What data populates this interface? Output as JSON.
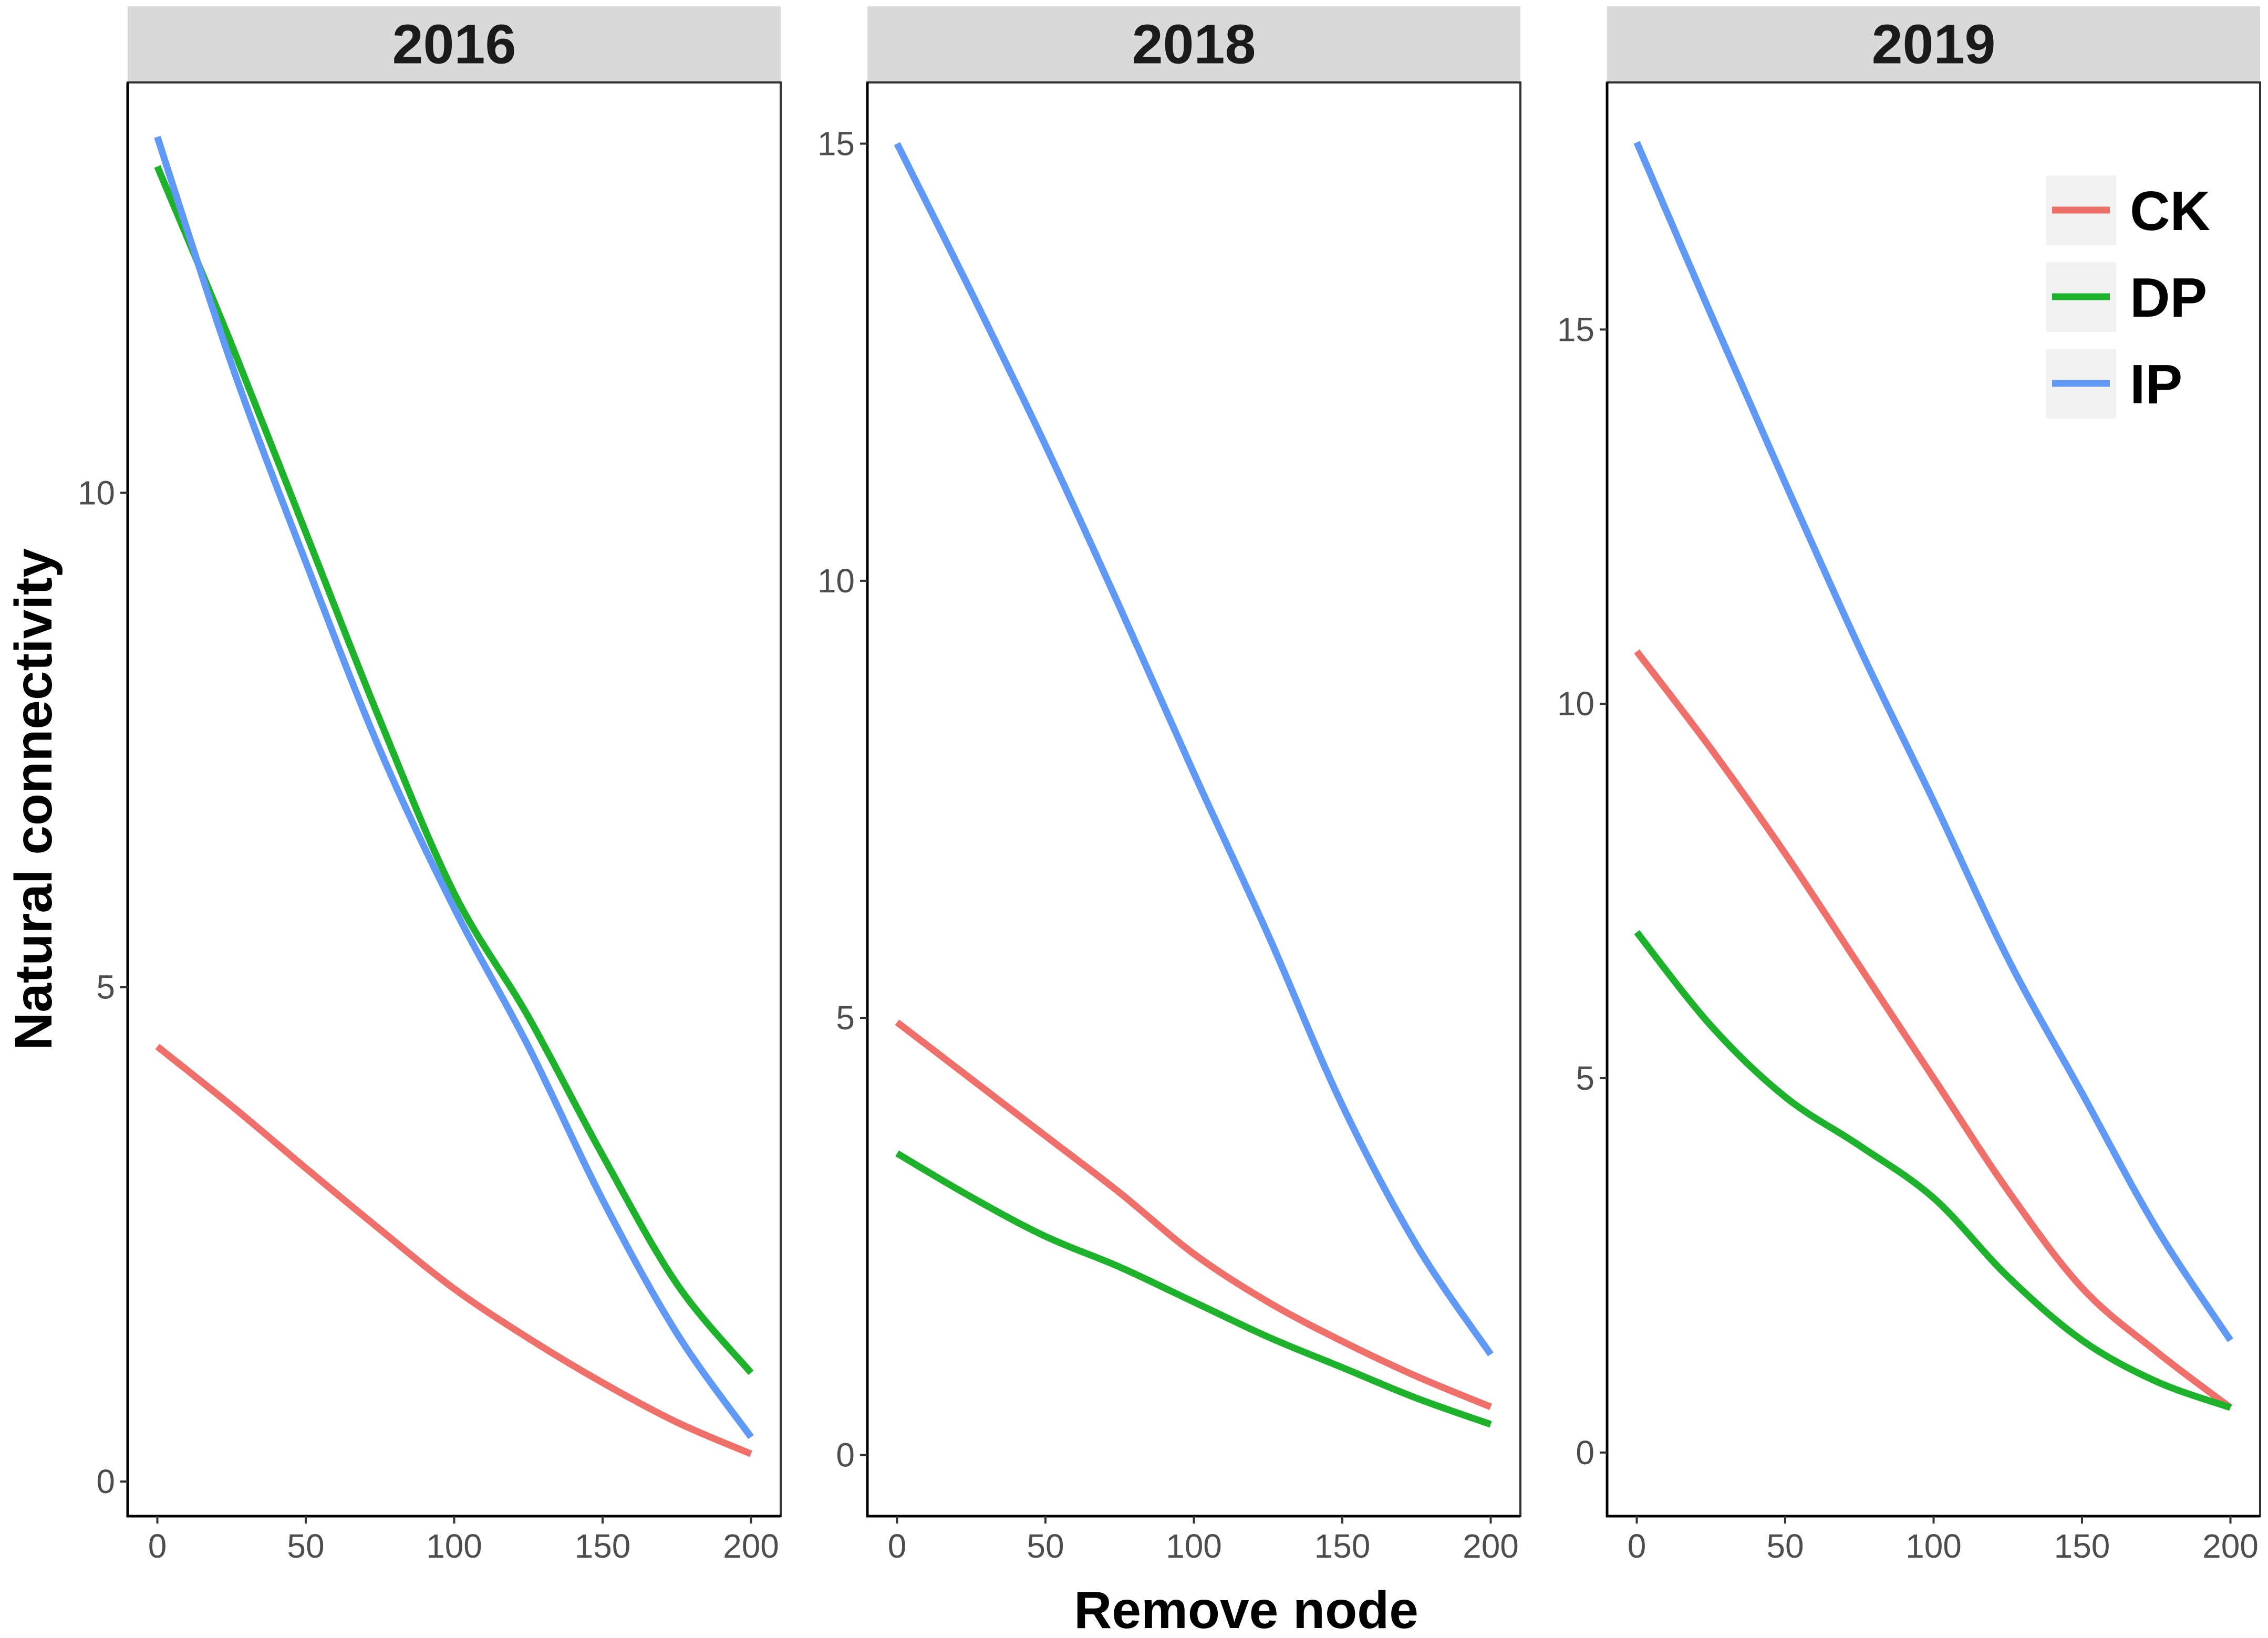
{
  "chart_data": {
    "type": "line",
    "xlabel": "Remove node",
    "ylabel": "Natural connectivity",
    "x_ticks": [
      0,
      50,
      100,
      150,
      200
    ],
    "legend": {
      "placement": "top-right",
      "items": [
        "CK",
        "DP",
        "IP"
      ]
    },
    "colors": {
      "CK": "#ef6f6a",
      "DP": "#1db12c",
      "IP": "#5f98f5"
    },
    "grid": false,
    "panels": [
      {
        "title": "2016",
        "xlim": [
          -10,
          210
        ],
        "ylim": [
          -0.35,
          14.15
        ],
        "y_ticks": [
          0,
          5,
          10
        ],
        "series": [
          {
            "name": "CK",
            "x": [
              0,
              25,
              50,
              75,
              100,
              125,
              150,
              175,
              200
            ],
            "y": [
              4.4,
              3.8,
              3.17,
              2.55,
              1.95,
              1.45,
              1.0,
              0.6,
              0.28
            ]
          },
          {
            "name": "DP",
            "x": [
              0,
              25,
              50,
              75,
              100,
              125,
              150,
              175,
              200
            ],
            "y": [
              13.3,
              11.5,
              9.6,
              7.7,
              5.95,
              4.7,
              3.3,
              2.0,
              1.1
            ]
          },
          {
            "name": "IP",
            "x": [
              0,
              25,
              50,
              75,
              100,
              125,
              150,
              175,
              200
            ],
            "y": [
              13.6,
              11.3,
              9.3,
              7.4,
              5.8,
              4.4,
              2.85,
              1.5,
              0.45
            ]
          }
        ]
      },
      {
        "title": "2018",
        "xlim": [
          -10,
          210
        ],
        "ylim": [
          -0.7,
          15.7
        ],
        "y_ticks": [
          0,
          5,
          10,
          15
        ],
        "series": [
          {
            "name": "CK",
            "x": [
              0,
              25,
              50,
              75,
              100,
              125,
              150,
              175,
              200
            ],
            "y": [
              4.95,
              4.3,
              3.65,
              3.0,
              2.3,
              1.75,
              1.3,
              0.9,
              0.55
            ]
          },
          {
            "name": "DP",
            "x": [
              0,
              25,
              50,
              75,
              100,
              125,
              150,
              175,
              200
            ],
            "y": [
              3.45,
              2.95,
              2.5,
              2.15,
              1.75,
              1.35,
              1.0,
              0.65,
              0.35
            ]
          },
          {
            "name": "IP",
            "x": [
              0,
              25,
              50,
              75,
              100,
              125,
              150,
              175,
              200
            ],
            "y": [
              15.0,
              13.3,
              11.55,
              9.7,
              7.8,
              5.95,
              4.0,
              2.4,
              1.15
            ]
          }
        ]
      },
      {
        "title": "2019",
        "xlim": [
          -10,
          210
        ],
        "ylim": [
          -0.85,
          18.3
        ],
        "y_ticks": [
          0,
          5,
          10,
          15
        ],
        "series": [
          {
            "name": "CK",
            "x": [
              0,
              25,
              50,
              75,
              100,
              125,
              150,
              175,
              200
            ],
            "y": [
              10.7,
              9.4,
              8.0,
              6.5,
              5.0,
              3.5,
              2.2,
              1.35,
              0.6
            ]
          },
          {
            "name": "DP",
            "x": [
              0,
              25,
              50,
              75,
              100,
              125,
              150,
              175,
              200
            ],
            "y": [
              6.95,
              5.7,
              4.75,
              4.1,
              3.4,
              2.35,
              1.5,
              0.95,
              0.6
            ]
          },
          {
            "name": "IP",
            "x": [
              0,
              25,
              50,
              75,
              100,
              125,
              150,
              175,
              200
            ],
            "y": [
              17.5,
              15.2,
              12.95,
              10.75,
              8.7,
              6.6,
              4.8,
              3.0,
              1.5
            ]
          }
        ]
      }
    ]
  }
}
